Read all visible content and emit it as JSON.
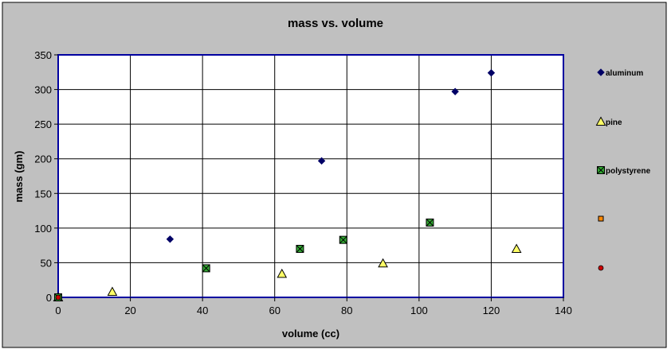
{
  "chart_data": {
    "type": "scatter",
    "title": "mass vs. volume",
    "xlabel": "volume (cc)",
    "ylabel": "mass (gm)",
    "xlim": [
      0,
      140
    ],
    "ylim": [
      0,
      350
    ],
    "xticks": [
      0,
      20,
      40,
      60,
      80,
      100,
      120,
      140
    ],
    "yticks": [
      0,
      50,
      100,
      150,
      200,
      250,
      300,
      350
    ],
    "grid": true,
    "legend_position": "right",
    "colors": {
      "chart_bg": "#c0c0c0",
      "plot_bg": "#ffffff",
      "plot_border": "#0000a0",
      "grid": "#000000"
    },
    "series": [
      {
        "name": "aluminum",
        "marker": "diamond",
        "color": "#000066",
        "points": [
          [
            0,
            0
          ],
          [
            31,
            84
          ],
          [
            73,
            197
          ],
          [
            110,
            297
          ],
          [
            120,
            324
          ]
        ]
      },
      {
        "name": "pine",
        "marker": "triangle",
        "color": "#ffff66",
        "points": [
          [
            0,
            0
          ],
          [
            15,
            8
          ],
          [
            62,
            34
          ],
          [
            90,
            49
          ],
          [
            127,
            70
          ]
        ]
      },
      {
        "name": "polystyrene",
        "marker": "x-square",
        "color": "#33aa33",
        "points": [
          [
            0,
            0
          ],
          [
            41,
            42
          ],
          [
            67,
            70
          ],
          [
            79,
            83
          ],
          [
            103,
            108
          ]
        ]
      },
      {
        "name": "",
        "marker": "square",
        "color": "#ff8800",
        "points": []
      },
      {
        "name": "",
        "marker": "circle",
        "color": "#cc0000",
        "points": [
          [
            0,
            0
          ]
        ]
      }
    ]
  }
}
